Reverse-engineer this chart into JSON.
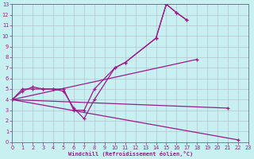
{
  "xlabel": "Windchill (Refroidissement éolien,°C)",
  "bg_color": "#c8f0f0",
  "line_color": "#9b1a8a",
  "grid_color": "#b0b8cc",
  "xlim": [
    0,
    23
  ],
  "ylim": [
    0,
    13
  ],
  "xticks": [
    0,
    1,
    2,
    3,
    4,
    5,
    6,
    7,
    8,
    9,
    10,
    11,
    12,
    13,
    14,
    15,
    16,
    17,
    18,
    19,
    20,
    21,
    22,
    23
  ],
  "yticks": [
    0,
    1,
    2,
    3,
    4,
    5,
    6,
    7,
    8,
    9,
    10,
    11,
    12,
    13
  ],
  "s1x": [
    0,
    1,
    2,
    3,
    4,
    5,
    6,
    7,
    8,
    10,
    11,
    14,
    15,
    16,
    17
  ],
  "s1y": [
    4,
    5,
    5,
    5,
    5,
    5,
    3,
    3,
    5,
    7,
    7.5,
    9.8,
    13,
    12.2,
    11.5
  ],
  "s2x": [
    0,
    1,
    2,
    3,
    4,
    5,
    6,
    7,
    8,
    10,
    11,
    14,
    15,
    16,
    17
  ],
  "s2y": [
    4,
    4.8,
    5.2,
    5,
    5,
    4.8,
    3.2,
    2.2,
    4,
    7,
    7.5,
    9.8,
    13,
    12.2,
    11.5
  ],
  "s3x": [
    0,
    22
  ],
  "s3y": [
    4,
    0.2
  ],
  "s4x": [
    0,
    18
  ],
  "s4y": [
    4,
    7.8
  ],
  "s5x": [
    0,
    21
  ],
  "s5y": [
    4,
    3.2
  ],
  "lw": 0.9,
  "ms": 3.5
}
